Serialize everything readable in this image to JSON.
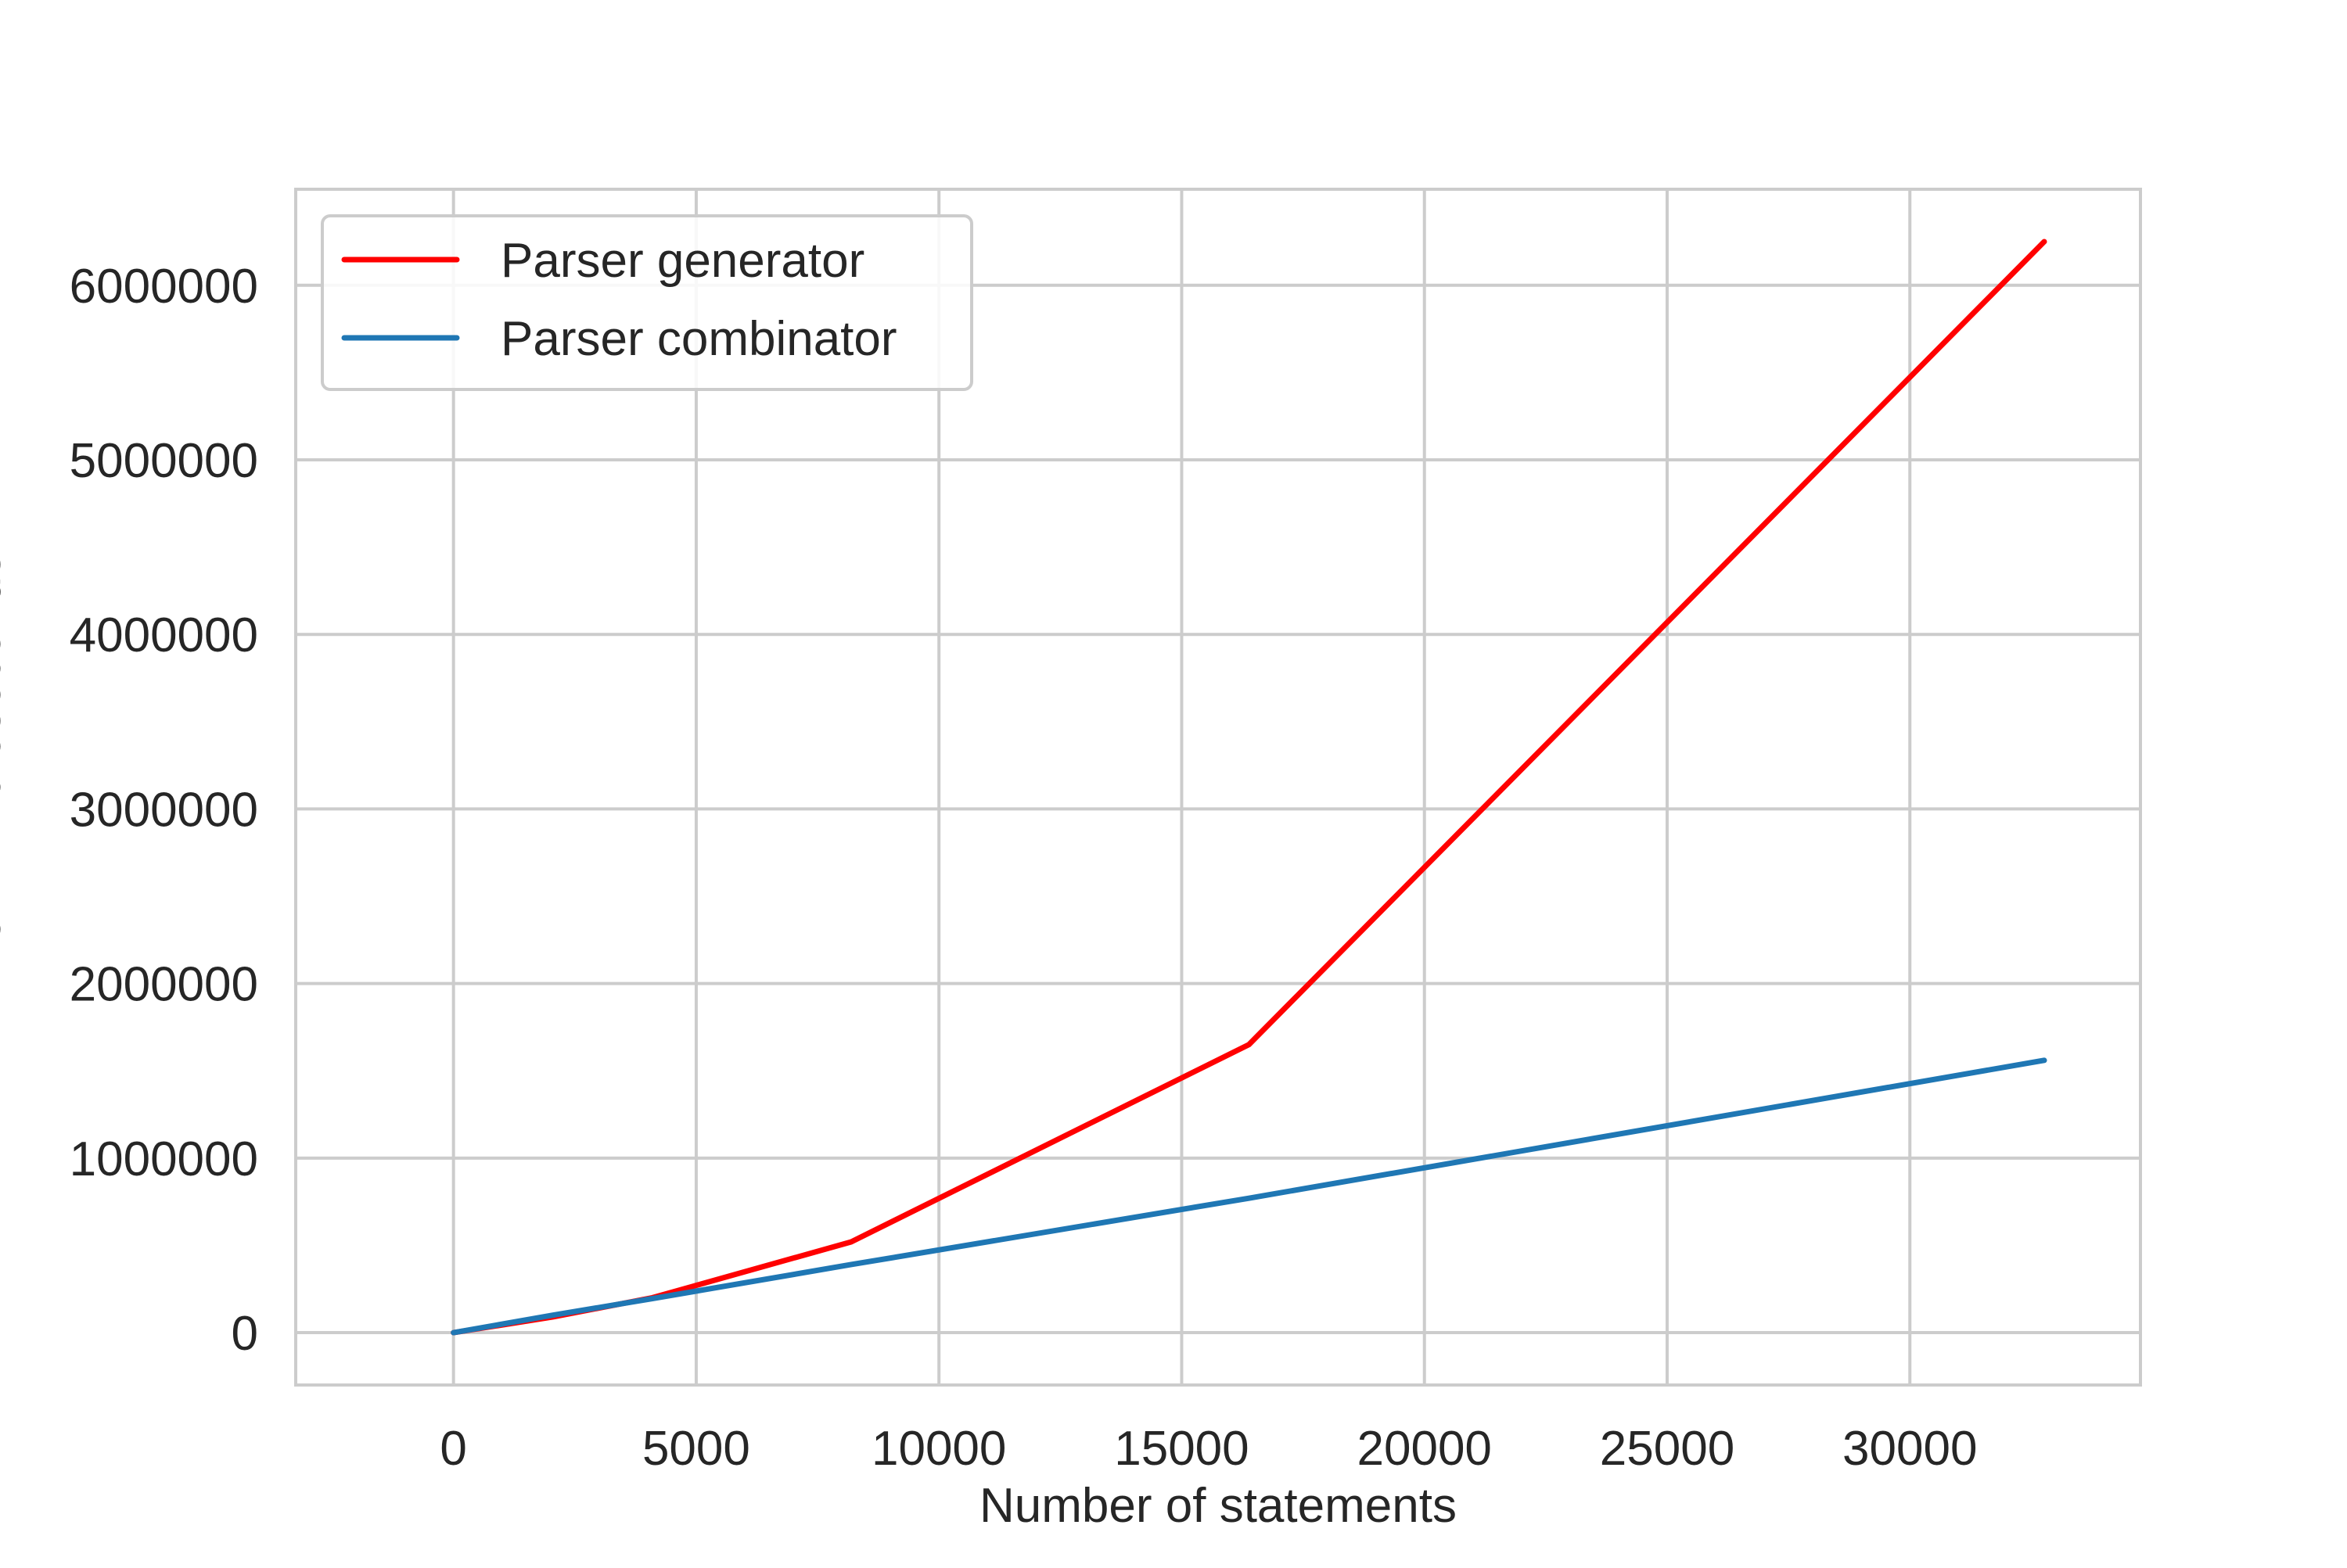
{
  "chart_data": {
    "type": "line",
    "title": "",
    "xlabel": "Number of statements",
    "ylabel": "Time in microseconds",
    "xlim": [
      -3250,
      34750
    ],
    "ylim": [
      -300000,
      6550000
    ],
    "xticks": [
      0,
      5000,
      10000,
      15000,
      20000,
      25000,
      30000
    ],
    "xtick_labels": [
      "0",
      "5000",
      "10000",
      "15000",
      "20000",
      "25000",
      "30000"
    ],
    "yticks": [
      0,
      1000000,
      2000000,
      3000000,
      4000000,
      5000000,
      6000000
    ],
    "ytick_labels": [
      "0",
      "1000000",
      "2000000",
      "3000000",
      "4000000",
      "5000000",
      "6000000"
    ],
    "grid": true,
    "legend_position": "top-left",
    "series": [
      {
        "name": "Parser generator",
        "color": "#ff0000",
        "x": [
          0,
          2048,
          4096,
          8192,
          16384,
          32768
        ],
        "y": [
          0,
          90000,
          200000,
          520000,
          1650000,
          6250000
        ]
      },
      {
        "name": "Parser combinator",
        "color": "#1f77b4",
        "x": [
          0,
          2048,
          4096,
          8192,
          16384,
          32768
        ],
        "y": [
          0,
          100000,
          195000,
          390000,
          770000,
          1560000
        ]
      }
    ]
  }
}
